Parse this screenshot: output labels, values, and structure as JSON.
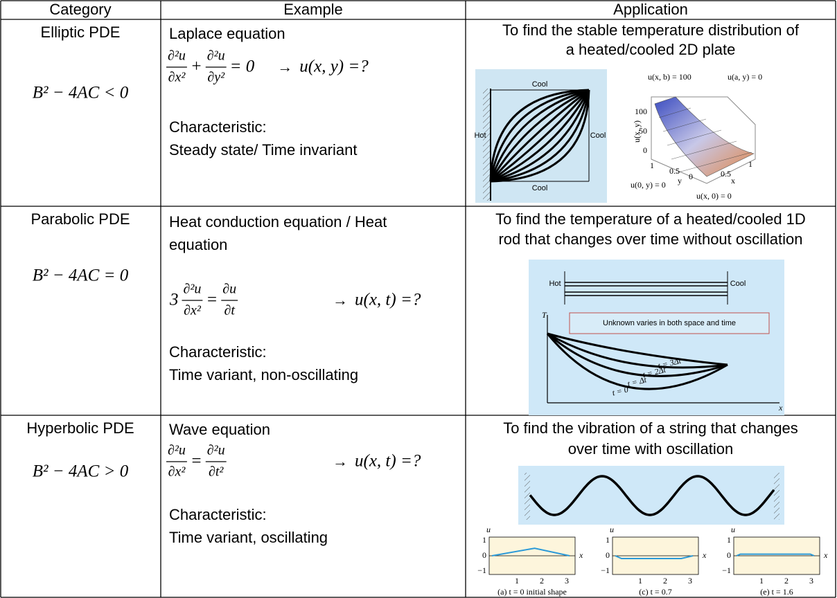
{
  "table": {
    "header": [
      "Category",
      "Example",
      "Application"
    ],
    "rows": [
      {
        "category": "Elliptic PDE",
        "condition": "B² − 4AC < 0",
        "example": {
          "name_lines": [
            "Laplace equation"
          ],
          "equation": [
            {
              "num": "∂²u",
              "den": "∂x²"
            },
            "+",
            {
              "num": "∂²u",
              "den": "∂y²"
            },
            "= 0"
          ],
          "arrow": "→",
          "unknown": "u(x, y) =?",
          "characteristic_label": "Characteristic:",
          "characteristic": "Steady state/ Time invariant"
        },
        "application": {
          "lines": [
            "To find the stable temperature distribution of",
            "a heated/cooled 2D plate"
          ],
          "plate_figure": {
            "top": "Cool",
            "left": "Hot",
            "right": "Cool",
            "bottom": "Cool"
          },
          "surface_figure": {
            "top_left": "u(x, b) = 100",
            "top_right": "u(a, y) = 0",
            "bottom_left": "u(0, y) = 0",
            "bottom_right": "u(x, 0) = 0",
            "z_label": "u(x, y)",
            "z_ticks": [
              "100",
              "50",
              "0"
            ],
            "y_ticks": [
              "1",
              "0.5",
              "0"
            ],
            "x_ticks": [
              "0.5",
              "1"
            ],
            "y_label": "y",
            "x_label": "x"
          }
        }
      },
      {
        "category": "Parabolic PDE",
        "condition": "B² − 4AC = 0",
        "example": {
          "name_lines": [
            "Heat conduction equation / Heat",
            "equation"
          ],
          "equation": [
            "3",
            {
              "num": "∂²u",
              "den": "∂x²"
            },
            "=",
            {
              "num": "∂u",
              "den": "∂t"
            }
          ],
          "arrow": "→",
          "unknown": "u(x, t) =?",
          "characteristic_label": "Characteristic:",
          "characteristic": "Time variant, non-oscillating"
        },
        "application": {
          "lines": [
            "To find the temperature of a heated/cooled 1D",
            "rod that changes over time without oscillation"
          ],
          "rod_figure": {
            "left": "Hot",
            "right": "Cool",
            "y_axis": "T",
            "x_axis": "x",
            "note": "Unknown varies in both space and time",
            "curves": [
              "t = 3Δt",
              "t = 2Δt",
              "t = Δt",
              "t = 0"
            ]
          }
        }
      },
      {
        "category": "Hyperbolic PDE",
        "condition": "B² − 4AC > 0",
        "example": {
          "name_lines": [
            "Wave equation"
          ],
          "equation": [
            {
              "num": "∂²u",
              "den": "∂x²"
            },
            "=",
            {
              "num": "∂²u",
              "den": "∂t²"
            }
          ],
          "arrow": "→",
          "unknown": "u(x, t) =?",
          "characteristic_label": "Characteristic:",
          "characteristic": "Time variant, oscillating"
        },
        "application": {
          "lines": [
            "To find the vibration of a string that changes",
            "over time with oscillation"
          ],
          "string_figure": {
            "y_axis": "u",
            "x_axis": "x",
            "y_ticks": [
              "1",
              "0",
              "−1"
            ],
            "x_ticks": [
              "1",
              "2",
              "3"
            ],
            "captions": [
              "(a) t = 0 initial shape",
              "(c) t = 0.7",
              "(e) t = 1.6"
            ]
          }
        }
      }
    ]
  }
}
